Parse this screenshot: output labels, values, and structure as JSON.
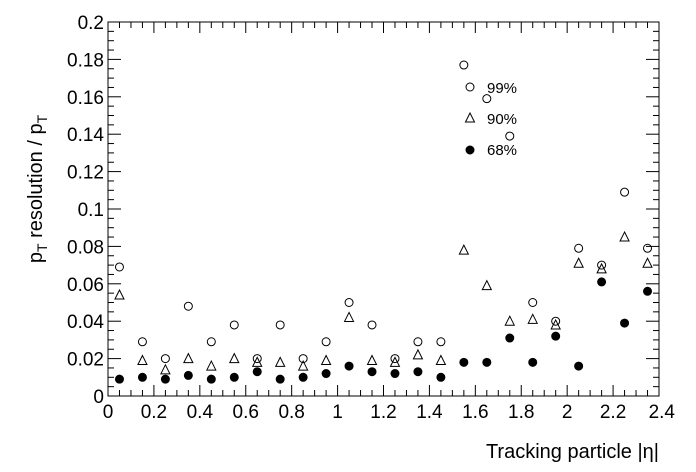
{
  "chart_data": {
    "type": "scatter",
    "xlabel": "Tracking particle |η|",
    "ylabel_parts": {
      "p1": "p",
      "sub1": "T",
      "mid": " resolution / p",
      "sub2": "T"
    },
    "xlim": [
      0,
      2.4
    ],
    "ylim": [
      0,
      0.2
    ],
    "x_ticks": [
      "0",
      "0.2",
      "0.4",
      "0.6",
      "0.8",
      "1",
      "1.2",
      "1.4",
      "1.6",
      "1.8",
      "2",
      "2.2",
      "2.4"
    ],
    "y_ticks": [
      "0",
      "0.02",
      "0.04",
      "0.06",
      "0.08",
      "0.1",
      "0.12",
      "0.14",
      "0.16",
      "0.18",
      "0.2"
    ],
    "grid": false,
    "legend_position": "top-center",
    "x": [
      0.05,
      0.15,
      0.25,
      0.35,
      0.45,
      0.55,
      0.65,
      0.75,
      0.85,
      0.95,
      1.05,
      1.15,
      1.25,
      1.35,
      1.45,
      1.55,
      1.65,
      1.75,
      1.85,
      1.95,
      2.05,
      2.15,
      2.25,
      2.35
    ],
    "series": [
      {
        "name": "99%",
        "marker": "open-circle",
        "values": [
          0.069,
          0.029,
          0.02,
          0.048,
          0.029,
          0.038,
          0.02,
          0.038,
          0.02,
          0.029,
          0.05,
          0.038,
          0.02,
          0.029,
          0.029,
          0.177,
          0.159,
          0.139,
          0.05,
          0.04,
          0.079,
          0.07,
          0.109,
          0.079
        ]
      },
      {
        "name": "90%",
        "marker": "open-triangle",
        "values": [
          0.054,
          0.019,
          0.014,
          0.02,
          0.016,
          0.02,
          0.018,
          0.018,
          0.016,
          0.019,
          0.042,
          0.019,
          0.018,
          0.022,
          0.019,
          0.078,
          0.059,
          0.04,
          0.041,
          0.038,
          0.071,
          0.068,
          0.085,
          0.071
        ]
      },
      {
        "name": "68%",
        "marker": "filled-circle",
        "values": [
          0.009,
          0.01,
          0.009,
          0.011,
          0.009,
          0.01,
          0.013,
          0.009,
          0.01,
          0.012,
          0.016,
          0.013,
          0.012,
          0.013,
          0.01,
          0.018,
          0.018,
          0.031,
          0.018,
          0.032,
          0.016,
          0.061,
          0.039,
          0.056
        ]
      }
    ],
    "colors": {
      "marker": "#000000",
      "axis": "#000000",
      "background": "#ffffff"
    }
  }
}
